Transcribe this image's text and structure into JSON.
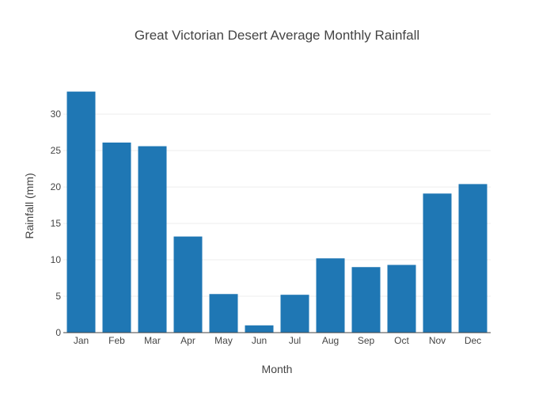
{
  "chart_data": {
    "type": "bar",
    "title": "Great Victorian Desert Average Monthly Rainfall",
    "xlabel": "Month",
    "ylabel": "Rainfall (mm)",
    "categories": [
      "Jan",
      "Feb",
      "Mar",
      "Apr",
      "May",
      "Jun",
      "Jul",
      "Aug",
      "Sep",
      "Oct",
      "Nov",
      "Dec"
    ],
    "values": [
      33.1,
      26.1,
      25.6,
      13.2,
      5.3,
      1.0,
      5.2,
      10.2,
      9.0,
      9.3,
      19.1,
      20.4
    ],
    "ylim": [
      0,
      34.8
    ],
    "yticks": [
      0,
      5,
      10,
      15,
      20,
      25,
      30
    ],
    "grid": true,
    "legend": "none",
    "colors": {
      "bar": "#1f77b4",
      "grid": "#eeeeee",
      "axis": "#444444",
      "text": "#444444"
    }
  }
}
